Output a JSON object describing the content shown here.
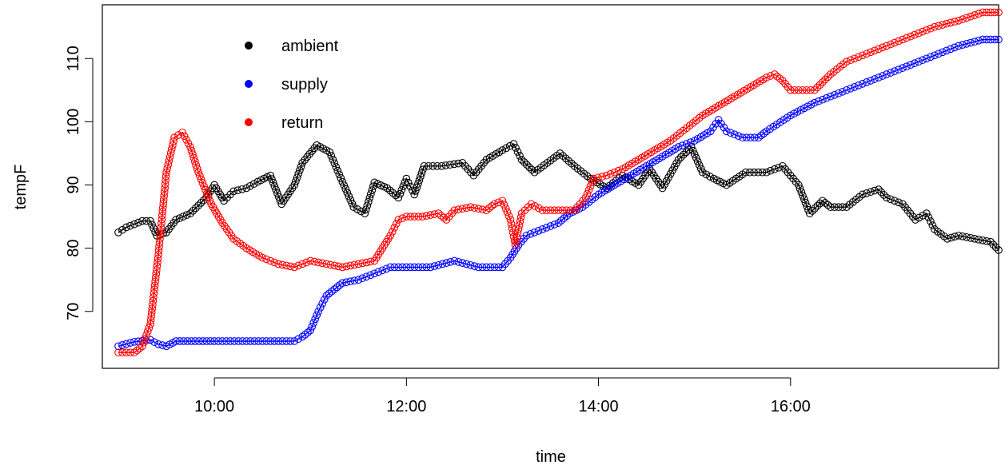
{
  "chart_data": {
    "type": "line",
    "xlabel": "time",
    "ylabel": "tempF",
    "x_ticks": [
      "10:00",
      "12:00",
      "14:00",
      "16:00"
    ],
    "y_ticks": [
      "70",
      "80",
      "90",
      "100",
      "110"
    ],
    "x_range": [
      "08:50",
      "18:10"
    ],
    "ylim": [
      61,
      118.5
    ],
    "grid": false,
    "legend_position": "top-left",
    "series": [
      {
        "name": "ambient",
        "color": "#000000",
        "values": [
          [
            "09:00",
            82.5
          ],
          [
            "09:05",
            83.3
          ],
          [
            "09:15",
            84.3
          ],
          [
            "09:20",
            84.3
          ],
          [
            "09:24",
            82.0
          ],
          [
            "09:30",
            82.5
          ],
          [
            "09:36",
            84.5
          ],
          [
            "09:45",
            85.5
          ],
          [
            "09:55",
            88.0
          ],
          [
            "10:00",
            90.0
          ],
          [
            "10:06",
            87.5
          ],
          [
            "10:12",
            89.0
          ],
          [
            "10:20",
            89.5
          ],
          [
            "10:27",
            90.5
          ],
          [
            "10:35",
            91.5
          ],
          [
            "10:42",
            87.0
          ],
          [
            "10:50",
            90.0
          ],
          [
            "10:55",
            93.5
          ],
          [
            "11:04",
            96.3
          ],
          [
            "11:12",
            95.2
          ],
          [
            "11:20",
            90.5
          ],
          [
            "11:27",
            86.5
          ],
          [
            "11:34",
            85.5
          ],
          [
            "11:40",
            90.4
          ],
          [
            "11:48",
            89.5
          ],
          [
            "11:55",
            88.0
          ],
          [
            "12:00",
            91.0
          ],
          [
            "12:05",
            88.5
          ],
          [
            "12:11",
            93.0
          ],
          [
            "12:22",
            93.0
          ],
          [
            "12:35",
            93.5
          ],
          [
            "12:42",
            91.5
          ],
          [
            "12:50",
            94.0
          ],
          [
            "13:00",
            95.5
          ],
          [
            "13:07",
            96.5
          ],
          [
            "13:12",
            94.0
          ],
          [
            "13:20",
            92.0
          ],
          [
            "13:28",
            93.5
          ],
          [
            "13:36",
            95.0
          ],
          [
            "13:45",
            93.0
          ],
          [
            "13:55",
            91.0
          ],
          [
            "14:05",
            89.5
          ],
          [
            "14:15",
            91.5
          ],
          [
            "14:25",
            90.0
          ],
          [
            "14:32",
            92.5
          ],
          [
            "14:40",
            89.5
          ],
          [
            "14:50",
            94.0
          ],
          [
            "14:58",
            96.0
          ],
          [
            "15:05",
            92.0
          ],
          [
            "15:12",
            91.0
          ],
          [
            "15:20",
            90.0
          ],
          [
            "15:32",
            92.0
          ],
          [
            "15:45",
            92.0
          ],
          [
            "15:55",
            93.0
          ],
          [
            "16:05",
            90.0
          ],
          [
            "16:12",
            85.5
          ],
          [
            "16:20",
            87.5
          ],
          [
            "16:25",
            86.5
          ],
          [
            "16:35",
            86.5
          ],
          [
            "16:45",
            88.5
          ],
          [
            "16:55",
            89.3
          ],
          [
            "17:00",
            88.0
          ],
          [
            "17:10",
            87.0
          ],
          [
            "17:18",
            84.5
          ],
          [
            "17:25",
            85.5
          ],
          [
            "17:30",
            83.0
          ],
          [
            "17:38",
            81.5
          ],
          [
            "17:45",
            82.0
          ],
          [
            "17:55",
            81.5
          ],
          [
            "18:05",
            81.0
          ],
          [
            "18:10",
            79.7
          ]
        ]
      },
      {
        "name": "supply",
        "color": "#0000ff",
        "values": [
          [
            "09:00",
            64.5
          ],
          [
            "09:10",
            65.2
          ],
          [
            "09:20",
            65.5
          ],
          [
            "09:25",
            64.8
          ],
          [
            "09:30",
            64.5
          ],
          [
            "09:36",
            65.3
          ],
          [
            "10:00",
            65.3
          ],
          [
            "10:30",
            65.3
          ],
          [
            "10:50",
            65.3
          ],
          [
            "10:55",
            66.0
          ],
          [
            "11:00",
            67.0
          ],
          [
            "11:05",
            70.0
          ],
          [
            "11:10",
            72.5
          ],
          [
            "11:15",
            73.5
          ],
          [
            "11:20",
            74.5
          ],
          [
            "11:30",
            75.0
          ],
          [
            "11:40",
            76.0
          ],
          [
            "11:50",
            77.0
          ],
          [
            "12:00",
            77.0
          ],
          [
            "12:15",
            77.0
          ],
          [
            "12:30",
            78.0
          ],
          [
            "12:45",
            77.0
          ],
          [
            "13:00",
            77.0
          ],
          [
            "13:05",
            78.5
          ],
          [
            "13:10",
            80.5
          ],
          [
            "13:15",
            82.0
          ],
          [
            "13:25",
            83.0
          ],
          [
            "13:35",
            84.0
          ],
          [
            "13:42",
            85.5
          ],
          [
            "13:50",
            86.5
          ],
          [
            "14:00",
            88.5
          ],
          [
            "14:10",
            90.0
          ],
          [
            "14:20",
            91.5
          ],
          [
            "14:30",
            93.0
          ],
          [
            "14:40",
            94.5
          ],
          [
            "14:50",
            96.0
          ],
          [
            "15:00",
            97.0
          ],
          [
            "15:10",
            98.5
          ],
          [
            "15:15",
            100.3
          ],
          [
            "15:20",
            98.5
          ],
          [
            "15:30",
            97.5
          ],
          [
            "15:40",
            97.5
          ],
          [
            "15:45",
            98.5
          ],
          [
            "16:00",
            101.0
          ],
          [
            "16:15",
            103.0
          ],
          [
            "16:30",
            104.5
          ],
          [
            "16:45",
            106.0
          ],
          [
            "17:00",
            107.5
          ],
          [
            "17:15",
            109.0
          ],
          [
            "17:30",
            110.5
          ],
          [
            "17:45",
            112.0
          ],
          [
            "18:00",
            113.0
          ],
          [
            "18:10",
            113.0
          ]
        ]
      },
      {
        "name": "return",
        "color": "#ff0000",
        "values": [
          [
            "09:00",
            63.5
          ],
          [
            "09:10",
            63.5
          ],
          [
            "09:15",
            64.5
          ],
          [
            "09:20",
            68.0
          ],
          [
            "09:25",
            79.0
          ],
          [
            "09:30",
            92.0
          ],
          [
            "09:35",
            97.5
          ],
          [
            "09:40",
            98.3
          ],
          [
            "09:45",
            96.0
          ],
          [
            "09:50",
            92.0
          ],
          [
            "09:58",
            87.0
          ],
          [
            "10:05",
            84.0
          ],
          [
            "10:12",
            81.5
          ],
          [
            "10:20",
            80.0
          ],
          [
            "10:30",
            78.5
          ],
          [
            "10:40",
            77.5
          ],
          [
            "10:50",
            77.0
          ],
          [
            "11:00",
            78.0
          ],
          [
            "11:10",
            77.5
          ],
          [
            "11:20",
            77.0
          ],
          [
            "11:30",
            77.5
          ],
          [
            "11:40",
            78.0
          ],
          [
            "11:45",
            80.0
          ],
          [
            "11:50",
            82.0
          ],
          [
            "11:55",
            84.5
          ],
          [
            "12:00",
            85.0
          ],
          [
            "12:10",
            85.0
          ],
          [
            "12:20",
            85.5
          ],
          [
            "12:25",
            84.5
          ],
          [
            "12:30",
            86.0
          ],
          [
            "12:40",
            86.5
          ],
          [
            "12:50",
            86.0
          ],
          [
            "12:55",
            87.0
          ],
          [
            "13:00",
            87.5
          ],
          [
            "13:05",
            84.5
          ],
          [
            "13:08",
            80.5
          ],
          [
            "13:12",
            85.5
          ],
          [
            "13:18",
            87.0
          ],
          [
            "13:25",
            86.0
          ],
          [
            "13:35",
            86.0
          ],
          [
            "13:45",
            86.0
          ],
          [
            "13:52",
            88.0
          ],
          [
            "13:57",
            91.0
          ],
          [
            "14:05",
            91.5
          ],
          [
            "14:15",
            92.5
          ],
          [
            "14:25",
            94.0
          ],
          [
            "14:35",
            95.5
          ],
          [
            "14:45",
            97.0
          ],
          [
            "14:55",
            99.0
          ],
          [
            "15:05",
            101.0
          ],
          [
            "15:15",
            102.5
          ],
          [
            "15:25",
            104.0
          ],
          [
            "15:35",
            105.5
          ],
          [
            "15:45",
            107.0
          ],
          [
            "15:50",
            107.5
          ],
          [
            "15:55",
            106.5
          ],
          [
            "16:00",
            105.0
          ],
          [
            "16:15",
            105.0
          ],
          [
            "16:25",
            107.5
          ],
          [
            "16:35",
            109.5
          ],
          [
            "16:45",
            110.5
          ],
          [
            "17:00",
            112.0
          ],
          [
            "17:15",
            113.5
          ],
          [
            "17:30",
            115.0
          ],
          [
            "17:45",
            116.0
          ],
          [
            "18:00",
            117.3
          ],
          [
            "18:10",
            117.3
          ]
        ]
      }
    ]
  }
}
